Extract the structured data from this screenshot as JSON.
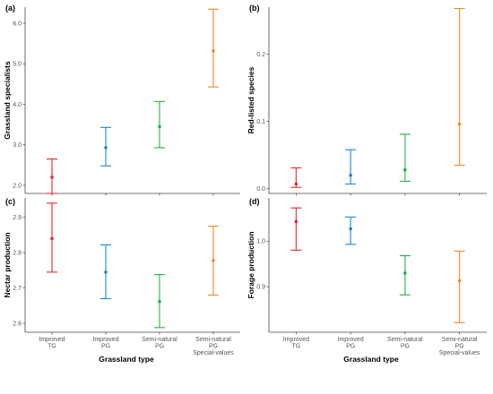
{
  "x_axis_title": "Grassland type",
  "chart_data": [
    {
      "type": "errorbar",
      "panel_label": "(a)",
      "ylabel": "Grassland specialists",
      "ylim": [
        1.8,
        6.4
      ],
      "yticks": [
        "2.0",
        "3.0",
        "4.0",
        "5.0",
        "6.0"
      ],
      "ytick_values": [
        2.0,
        3.0,
        4.0,
        5.0,
        6.0
      ],
      "categories": [
        [
          "Improved",
          "TG"
        ],
        [
          "Improved",
          "PG"
        ],
        [
          "Semi-natural",
          "PG"
        ],
        [
          "Semi-natural",
          "PG",
          "Special-values"
        ]
      ],
      "mean": [
        2.2,
        2.93,
        3.45,
        5.32
      ],
      "lower": [
        1.8,
        2.48,
        2.93,
        4.43
      ],
      "upper": [
        2.65,
        3.43,
        4.07,
        6.35
      ],
      "colors": [
        "#e8282e",
        "#1f88c9",
        "#22b14c",
        "#f08a24"
      ]
    },
    {
      "type": "errorbar",
      "panel_label": "(b)",
      "ylabel": "Red-listed species",
      "ylim": [
        -0.007,
        0.27
      ],
      "yticks": [
        "0.0",
        "0.1",
        "0.2"
      ],
      "ytick_values": [
        0.0,
        0.1,
        0.2
      ],
      "categories": [
        [
          "Improved",
          "TG"
        ],
        [
          "Improved",
          "PG"
        ],
        [
          "Semi-natural",
          "PG"
        ],
        [
          "Semi-natural",
          "PG",
          "Special-values"
        ]
      ],
      "mean": [
        0.007,
        0.02,
        0.028,
        0.096
      ],
      "lower": [
        0.002,
        0.007,
        0.011,
        0.035
      ],
      "upper": [
        0.031,
        0.058,
        0.081,
        0.268
      ],
      "colors": [
        "#e8282e",
        "#1f88c9",
        "#22b14c",
        "#f08a24"
      ]
    },
    {
      "type": "errorbar",
      "panel_label": "(c)",
      "ylabel": "Nectar production",
      "ylim": [
        2.575,
        2.955
      ],
      "yticks": [
        "2.6",
        "2.7",
        "2.8",
        "2.9"
      ],
      "ytick_values": [
        2.6,
        2.7,
        2.8,
        2.9
      ],
      "categories": [
        [
          "Improved",
          "TG"
        ],
        [
          "Improved",
          "PG"
        ],
        [
          "Semi-natural",
          "PG"
        ],
        [
          "Semi-natural",
          "PG",
          "Special-values"
        ]
      ],
      "mean": [
        2.84,
        2.745,
        2.662,
        2.778
      ],
      "lower": [
        2.745,
        2.67,
        2.588,
        2.68
      ],
      "upper": [
        2.94,
        2.822,
        2.738,
        2.875
      ],
      "colors": [
        "#e8282e",
        "#1f88c9",
        "#22b14c",
        "#f08a24"
      ]
    },
    {
      "type": "errorbar",
      "panel_label": "(d)",
      "ylabel": "Forage production",
      "ylim": [
        0.8,
        1.095
      ],
      "yticks": [
        "0.9",
        "1.0"
      ],
      "ytick_values": [
        0.9,
        1.0
      ],
      "categories": [
        [
          "Improved",
          "TG"
        ],
        [
          "Improved",
          "PG"
        ],
        [
          "Semi-natural",
          "PG"
        ],
        [
          "Semi-natural",
          "PG",
          "Special-values"
        ]
      ],
      "mean": [
        1.043,
        1.027,
        0.93,
        0.913
      ],
      "lower": [
        0.98,
        0.993,
        0.882,
        0.821
      ],
      "upper": [
        1.073,
        1.053,
        0.968,
        0.978
      ],
      "colors": [
        "#e8282e",
        "#1f88c9",
        "#22b14c",
        "#f08a24"
      ]
    }
  ]
}
